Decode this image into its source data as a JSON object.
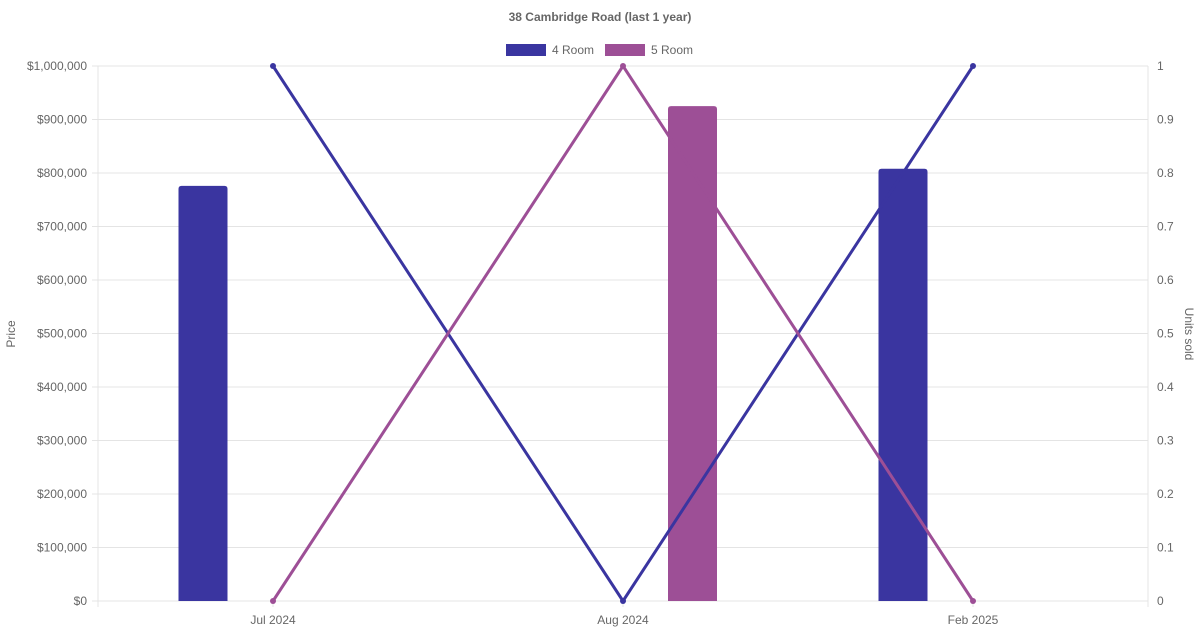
{
  "chart_data": {
    "type": "bar",
    "title": "38 Cambridge Road (last 1 year)",
    "categories": [
      "Jul 2024",
      "Aug 2024",
      "Feb 2025"
    ],
    "y_left": {
      "label": "Price",
      "range": [
        0,
        1000000
      ],
      "ticks": [
        "$0",
        "$100,000",
        "$200,000",
        "$300,000",
        "$400,000",
        "$500,000",
        "$600,000",
        "$700,000",
        "$800,000",
        "$900,000",
        "$1,000,000"
      ]
    },
    "y_right": {
      "label": "Units sold",
      "range": [
        0,
        1
      ],
      "ticks": [
        "0",
        "0.1",
        "0.2",
        "0.3",
        "0.4",
        "0.5",
        "0.6",
        "0.7",
        "0.8",
        "0.9",
        "1"
      ]
    },
    "legend": {
      "placement": "top-center",
      "entries": [
        "4 Room",
        "5 Room"
      ]
    },
    "grid": true,
    "series": [
      {
        "name": "4 Room",
        "color": "#3a35a0",
        "bar_values": [
          776000,
          null,
          808000
        ],
        "line_values": [
          1,
          0,
          1
        ]
      },
      {
        "name": "5 Room",
        "color": "#9d4f96",
        "bar_values": [
          null,
          925000,
          null
        ],
        "line_values": [
          0,
          1,
          0
        ]
      }
    ]
  }
}
